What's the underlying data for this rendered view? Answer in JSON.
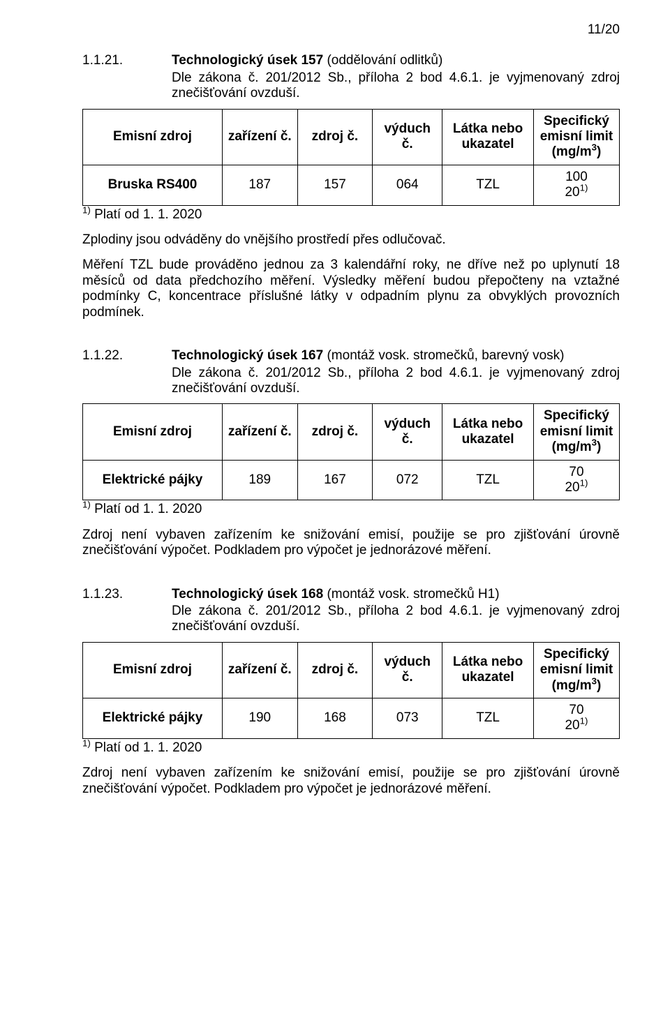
{
  "page_number": "11/20",
  "sec1": {
    "num": "1.1.21.",
    "title_prefix": "Technologický úsek 157 ",
    "title_suffix": "(oddělování odlitků)",
    "sub": "Dle zákona č. 201/2012 Sb., příloha 2 bod 4.6.1. je vyjmenovaný zdroj znečišťování ovzduší."
  },
  "sec2": {
    "num": "1.1.22.",
    "title_prefix": "Technologický úsek 167 ",
    "title_suffix": "(montáž vosk. stromečků, barevný vosk)",
    "sub": "Dle zákona č. 201/2012 Sb., příloha 2 bod 4.6.1. je vyjmenovaný zdroj znečišťování ovzduší."
  },
  "sec3": {
    "num": "1.1.23.",
    "title_prefix": "Technologický úsek 168 ",
    "title_suffix": "(montáž vosk. stromečků H1)",
    "sub": "Dle zákona č. 201/2012 Sb., příloha 2 bod 4.6.1. je vyjmenovaný zdroj znečišťování ovzduší."
  },
  "tbl_head": {
    "c0": "Emisní zdroj",
    "c1": "zařízení č.",
    "c2": "zdroj č.",
    "c3": "výduch č.",
    "c4": "Látka nebo ukazatel",
    "c5_l1": "Specifický",
    "c5_l2": "emisní limit",
    "c5_l3": "(mg/m",
    "c5_exp": "3",
    "c5_l3b": ")"
  },
  "row1": {
    "c0": "Bruska RS400",
    "c1": "187",
    "c2": "157",
    "c3": "064",
    "c4": "TZL",
    "c5a": "100",
    "c5b": "20",
    "c5bexp": "1)"
  },
  "row2": {
    "c0": "Elektrické pájky",
    "c1": "189",
    "c2": "167",
    "c3": "072",
    "c4": "TZL",
    "c5a": "70",
    "c5b": "20",
    "c5bexp": "1)"
  },
  "row3": {
    "c0": "Elektrické pájky",
    "c1": "190",
    "c2": "168",
    "c3": "073",
    "c4": "TZL",
    "c5a": "70",
    "c5b": "20",
    "c5bexp": "1)"
  },
  "footnote_sup": "1)",
  "footnote_text": " Platí od 1. 1. 2020",
  "p_zplodiny": "Zplodiny jsou odváděny do vnějšího prostředí přes odlučovač.",
  "p_mereni": "Měření TZL bude prováděno jednou za 3 kalendářní roky, ne dříve než po uplynutí 18 měsíců od data předchozího měření. Výsledky měření budou přepočteny na vztažné podmínky C, koncentrace příslušné látky v odpadním plynu za obvyklých provozních podmínek.",
  "p_zdroj": "Zdroj není vybaven zařízením ke snižování emisí, použije se pro zjišťování úrovně znečišťování výpočet. Podkladem pro výpočet je jednorázové měření."
}
